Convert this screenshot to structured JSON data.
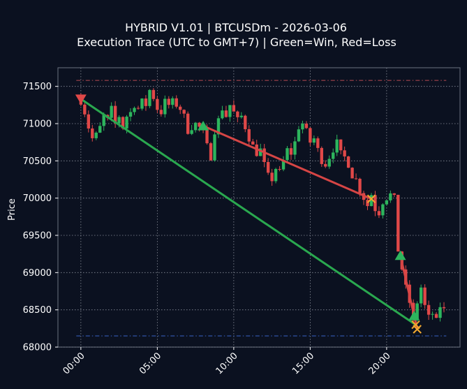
{
  "chart_data": {
    "type": "candlestick",
    "title_line1": "HYBRID V1.01 | BTCUSDm - 2026-03-06",
    "title_line2": "Execution Trace (UTC to GMT+7) | Green=Win, Red=Loss",
    "ylabel": "Price",
    "xlabel": "",
    "xlim_hours": [
      -1.5,
      24.8
    ],
    "ylim": [
      68000,
      71750
    ],
    "x_ticks": [
      {
        "label": "00:00",
        "hour": 0
      },
      {
        "label": "05:00",
        "hour": 5
      },
      {
        "label": "10:00",
        "hour": 10
      },
      {
        "label": "15:00",
        "hour": 15
      },
      {
        "label": "20:00",
        "hour": 20
      }
    ],
    "y_ticks": [
      {
        "label": "68000",
        "value": 68000
      },
      {
        "label": "68500",
        "value": 68500
      },
      {
        "label": "69000",
        "value": 69000
      },
      {
        "label": "69500",
        "value": 69500
      },
      {
        "label": "70000",
        "value": 70000
      },
      {
        "label": "70500",
        "value": 70500
      },
      {
        "label": "71000",
        "value": 71000
      },
      {
        "label": "71500",
        "value": 71500
      }
    ],
    "grid": true,
    "reference_lines": [
      {
        "value": 71580,
        "color": "#b84a52"
      },
      {
        "value": 68150,
        "color": "#3a64c8"
      }
    ],
    "candle_interval_hours": 0.25,
    "candle_anchors": [
      [
        0,
        71300
      ],
      [
        0.25,
        71150
      ],
      [
        0.5,
        70950
      ],
      [
        0.75,
        70800
      ],
      [
        1.0,
        70850
      ],
      [
        1.25,
        70950
      ],
      [
        1.5,
        71100
      ],
      [
        1.75,
        71050
      ],
      [
        2.0,
        71200
      ],
      [
        2.25,
        71000
      ],
      [
        2.5,
        71100
      ],
      [
        2.75,
        70950
      ],
      [
        3.0,
        71100
      ],
      [
        3.25,
        71150
      ],
      [
        3.5,
        71250
      ],
      [
        3.75,
        71200
      ],
      [
        4.0,
        71300
      ],
      [
        4.25,
        71250
      ],
      [
        4.5,
        71450
      ],
      [
        4.75,
        71350
      ],
      [
        5.0,
        71200
      ],
      [
        5.25,
        71150
      ],
      [
        5.5,
        71300
      ],
      [
        5.75,
        71250
      ],
      [
        6.0,
        71300
      ],
      [
        6.25,
        71250
      ],
      [
        6.5,
        71200
      ],
      [
        6.75,
        71100
      ],
      [
        7.0,
        70900
      ],
      [
        7.25,
        70950
      ],
      [
        7.5,
        71000
      ],
      [
        7.75,
        70950
      ],
      [
        8.0,
        70900
      ],
      [
        8.25,
        70700
      ],
      [
        8.5,
        70550
      ],
      [
        8.75,
        70900
      ],
      [
        9.0,
        71050
      ],
      [
        9.25,
        71200
      ],
      [
        9.5,
        71100
      ],
      [
        9.75,
        71250
      ],
      [
        10.0,
        71150
      ],
      [
        10.25,
        71050
      ],
      [
        10.5,
        71100
      ],
      [
        10.75,
        70950
      ],
      [
        11.0,
        70800
      ],
      [
        11.25,
        70700
      ],
      [
        11.5,
        70600
      ],
      [
        11.75,
        70650
      ],
      [
        12.0,
        70450
      ],
      [
        12.25,
        70300
      ],
      [
        12.5,
        70250
      ],
      [
        12.75,
        70400
      ],
      [
        13.0,
        70350
      ],
      [
        13.25,
        70500
      ],
      [
        13.5,
        70650
      ],
      [
        13.75,
        70600
      ],
      [
        14.0,
        70750
      ],
      [
        14.25,
        70950
      ],
      [
        14.5,
        71000
      ],
      [
        14.75,
        70900
      ],
      [
        15.0,
        70750
      ],
      [
        15.25,
        70800
      ],
      [
        15.5,
        70650
      ],
      [
        15.75,
        70500
      ],
      [
        16.0,
        70450
      ],
      [
        16.25,
        70550
      ],
      [
        16.5,
        70650
      ],
      [
        16.75,
        70750
      ],
      [
        17.0,
        70600
      ],
      [
        17.25,
        70550
      ],
      [
        17.5,
        70450
      ],
      [
        17.75,
        70300
      ],
      [
        18.0,
        70250
      ],
      [
        18.25,
        70100
      ],
      [
        18.5,
        70000
      ],
      [
        18.75,
        69900
      ],
      [
        19.0,
        70050
      ],
      [
        19.25,
        69850
      ],
      [
        19.5,
        69800
      ],
      [
        19.75,
        69950
      ],
      [
        20.0,
        70000
      ],
      [
        20.25,
        70050
      ],
      [
        20.5,
        70000
      ],
      [
        20.75,
        69300
      ],
      [
        21.0,
        69050
      ],
      [
        21.25,
        68800
      ],
      [
        21.5,
        68600
      ],
      [
        21.75,
        68350
      ],
      [
        22.0,
        68600
      ],
      [
        22.25,
        68800
      ],
      [
        22.5,
        68550
      ],
      [
        22.75,
        68400
      ],
      [
        23.0,
        68450
      ],
      [
        23.25,
        68350
      ],
      [
        23.5,
        68550
      ],
      [
        23.75,
        68500
      ]
    ],
    "trades": [
      {
        "direction": "sell",
        "entry_hour": 0.0,
        "entry_price": 71330,
        "exit_hour": 21.9,
        "exit_price": 68300,
        "result": "win"
      },
      {
        "direction": "buy",
        "entry_hour": 8.0,
        "entry_price": 70970,
        "exit_hour": 19.0,
        "exit_price": 69990,
        "result": "loss"
      },
      {
        "direction": "buy",
        "entry_hour": 20.9,
        "entry_price": 69230,
        "exit_hour": 22.0,
        "exit_price": 68240,
        "result": "loss"
      },
      {
        "direction": "buy",
        "entry_hour": 21.8,
        "entry_price": 68420,
        "exit_hour": 22.0,
        "exit_price": 68240,
        "result": "loss"
      }
    ],
    "colors": {
      "background": "#0b1120",
      "plot_border": "#6b7280",
      "grid": "#8a8f9a",
      "bull_candle": "#2db55d",
      "bear_candle": "#e04848",
      "win_line": "#2aa84f",
      "loss_line": "#d64545",
      "buy_marker": "#2db55d",
      "sell_marker": "#e04848",
      "exit_marker": "#f0a830",
      "text": "#ffffff"
    }
  }
}
